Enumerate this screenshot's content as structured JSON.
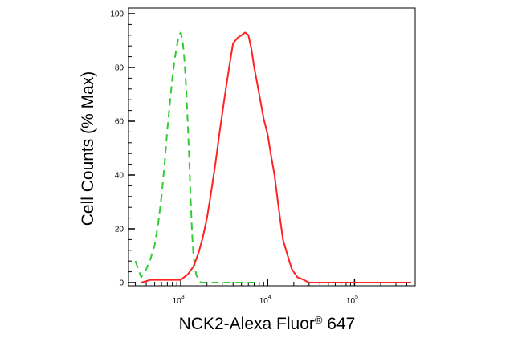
{
  "chart_data": {
    "type": "line",
    "title": "",
    "xlabel": "NCK2-Alexa Fluor",
    "xlabel_mark": "®",
    "xlabel_suffix": "647",
    "ylabel": "Cell Counts (% Max)",
    "x_scale": "log",
    "xlim": [
      250,
      500000
    ],
    "ylim": [
      0,
      100
    ],
    "x_ticks": [
      {
        "value": 1000,
        "base": "10",
        "exp": "3"
      },
      {
        "value": 10000,
        "base": "10",
        "exp": "4"
      },
      {
        "value": 100000,
        "base": "10",
        "exp": "5"
      }
    ],
    "y_ticks": [
      0,
      20,
      40,
      60,
      80,
      100
    ],
    "grid": false,
    "legend": "none",
    "series": [
      {
        "style": "dashed",
        "color": "#33cc33",
        "points": [
          [
            300,
            8
          ],
          [
            350,
            2
          ],
          [
            400,
            5
          ],
          [
            450,
            9
          ],
          [
            500,
            14
          ],
          [
            550,
            22
          ],
          [
            600,
            32
          ],
          [
            650,
            44
          ],
          [
            700,
            57
          ],
          [
            750,
            67
          ],
          [
            800,
            76
          ],
          [
            850,
            83
          ],
          [
            900,
            88
          ],
          [
            950,
            92
          ],
          [
            1000,
            93
          ],
          [
            1050,
            90
          ],
          [
            1100,
            83
          ],
          [
            1150,
            73
          ],
          [
            1200,
            60
          ],
          [
            1250,
            46
          ],
          [
            1300,
            31
          ],
          [
            1350,
            18
          ],
          [
            1400,
            10
          ],
          [
            1450,
            6
          ],
          [
            1500,
            3
          ],
          [
            1600,
            1
          ],
          [
            1700,
            0
          ],
          [
            2000,
            0
          ],
          [
            5000,
            0
          ],
          [
            8000,
            0
          ]
        ]
      },
      {
        "style": "solid",
        "color": "#ff2222",
        "points": [
          [
            350,
            0
          ],
          [
            450,
            1
          ],
          [
            600,
            1
          ],
          [
            800,
            1
          ],
          [
            1000,
            1
          ],
          [
            1200,
            3
          ],
          [
            1400,
            6
          ],
          [
            1600,
            11
          ],
          [
            1800,
            17
          ],
          [
            2000,
            24
          ],
          [
            2200,
            32
          ],
          [
            2500,
            44
          ],
          [
            2800,
            56
          ],
          [
            3200,
            69
          ],
          [
            3600,
            80
          ],
          [
            4000,
            89
          ],
          [
            4500,
            91
          ],
          [
            5000,
            92
          ],
          [
            5500,
            93
          ],
          [
            6000,
            92
          ],
          [
            6500,
            87
          ],
          [
            7000,
            80
          ],
          [
            7500,
            75
          ],
          [
            8000,
            70
          ],
          [
            9000,
            61
          ],
          [
            10000,
            55
          ],
          [
            11000,
            47
          ],
          [
            12000,
            40
          ],
          [
            13000,
            31
          ],
          [
            14000,
            23
          ],
          [
            15000,
            16
          ],
          [
            17000,
            10
          ],
          [
            19000,
            5
          ],
          [
            22000,
            2
          ],
          [
            26000,
            1
          ],
          [
            30000,
            0
          ],
          [
            50000,
            0
          ],
          [
            150000,
            0
          ],
          [
            450000,
            0
          ]
        ]
      }
    ]
  }
}
